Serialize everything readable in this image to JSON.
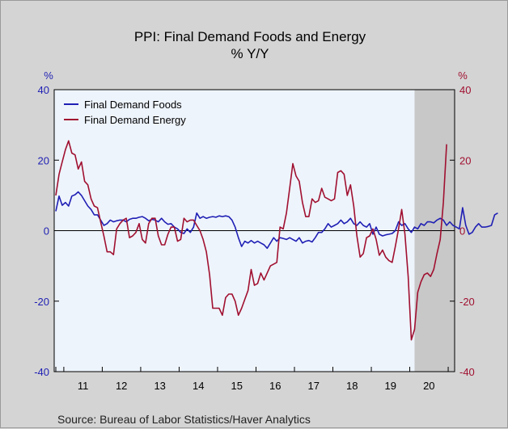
{
  "chart_data": {
    "type": "line",
    "title": "PPI: Final Demand Foods and Energy",
    "subtitle": "% Y/Y",
    "left_unit": "%",
    "right_unit": "%",
    "source": "Source:  Bureau of Labor Statistics/Haver Analytics",
    "ylim": [
      -40,
      40
    ],
    "y_ticks": [
      40,
      20,
      0,
      -20,
      -40
    ],
    "x_ticks": [
      "11",
      "12",
      "13",
      "14",
      "15",
      "16",
      "17",
      "18",
      "19",
      "20"
    ],
    "x_start": "2010-10",
    "grid": false,
    "legend_position": "top-left",
    "recession_shading": {
      "start": "2020-02",
      "end": "2021-03"
    },
    "colors": {
      "food": "#1f1fb4",
      "energy": "#a01030",
      "axis_left": "#1f1fb4",
      "axis_right": "#a01030",
      "plot_bg": "#eef4fc",
      "shade": "#c8c8c8"
    },
    "series": [
      {
        "name": "Final Demand Foods",
        "values": [
          5.5,
          9.8,
          7.2,
          8.0,
          7.0,
          9.8,
          10.2,
          11.0,
          10.0,
          8.5,
          7.0,
          6.0,
          4.5,
          4.5,
          3.0,
          1.5,
          2.0,
          3.0,
          2.5,
          2.8,
          3.0,
          3.0,
          2.5,
          3.2,
          3.5,
          3.5,
          3.8,
          4.0,
          3.5,
          2.8,
          3.2,
          3.0,
          2.5,
          3.5,
          2.5,
          1.8,
          2.0,
          1.0,
          0.5,
          -0.5,
          -0.8,
          0.5,
          -0.5,
          1.0,
          5.0,
          3.5,
          4.0,
          3.5,
          3.8,
          4.0,
          3.8,
          4.2,
          4.0,
          4.2,
          4.0,
          3.0,
          1.0,
          -2.0,
          -4.5,
          -3.0,
          -3.5,
          -2.8,
          -3.5,
          -3.0,
          -3.5,
          -4.0,
          -5.0,
          -3.5,
          -2.0,
          -3.0,
          -2.0,
          -2.2,
          -2.5,
          -2.0,
          -2.5,
          -3.0,
          -2.0,
          -3.5,
          -3.0,
          -2.8,
          -3.2,
          -2.0,
          -0.5,
          -0.5,
          0.5,
          2.0,
          1.0,
          1.5,
          2.0,
          3.0,
          2.0,
          2.5,
          3.5,
          2.0,
          1.5,
          2.5,
          1.5,
          1.0,
          2.0,
          -1.0,
          1.0,
          -1.0,
          -1.5,
          -1.2,
          -1.0,
          -0.8,
          0.0,
          2.5,
          1.5,
          2.0,
          0.5,
          -0.5,
          1.0,
          0.5,
          2.0,
          1.5,
          2.5,
          2.5,
          2.2,
          3.0,
          3.5,
          3.0,
          1.5,
          2.5,
          1.5,
          1.0,
          0.5,
          6.5,
          1.5,
          -1.0,
          -0.5,
          1.0,
          2.0,
          1.0,
          1.0,
          1.2,
          1.5,
          4.5,
          5.0
        ]
      },
      {
        "name": "Final Demand Energy",
        "values": [
          10.0,
          16.0,
          19.5,
          23.0,
          25.5,
          22.0,
          21.5,
          17.5,
          19.5,
          14.0,
          13.0,
          9.0,
          7.0,
          6.5,
          2.5,
          -1.5,
          -6.0,
          -6.0,
          -6.8,
          0.5,
          2.0,
          3.0,
          3.5,
          -2.0,
          -1.5,
          -0.5,
          2.0,
          -2.5,
          -3.5,
          2.0,
          3.5,
          3.5,
          -1.5,
          -4.0,
          -4.0,
          -1.0,
          1.0,
          1.0,
          -3.0,
          -2.5,
          3.5,
          2.5,
          3.0,
          3.0,
          1.5,
          0.0,
          -2.5,
          -6.0,
          -12.5,
          -22.0,
          -22.0,
          -22.0,
          -24.0,
          -19.0,
          -18.0,
          -18.0,
          -20.0,
          -24.0,
          -22.0,
          -19.5,
          -17.0,
          -11.0,
          -15.5,
          -15.0,
          -12.0,
          -14.0,
          -12.0,
          -10.0,
          -9.5,
          -9.0,
          1.0,
          0.5,
          5.0,
          12.0,
          19.0,
          15.5,
          14.0,
          8.0,
          4.0,
          4.0,
          9.0,
          8.0,
          8.5,
          12.0,
          9.5,
          9.0,
          8.5,
          9.0,
          16.5,
          17.0,
          16.0,
          10.0,
          13.0,
          7.0,
          -1.5,
          -7.5,
          -6.5,
          -2.0,
          -1.5,
          0.5,
          -2.5,
          -7.0,
          -5.5,
          -7.5,
          -8.5,
          -9.0,
          -4.5,
          0.5,
          6.0,
          -1.0,
          -13.0,
          -31.0,
          -28.0,
          -17.5,
          -14.5,
          -12.5,
          -12.0,
          -13.0,
          -11.0,
          -6.5,
          -2.5,
          8.0,
          24.5
        ]
      }
    ]
  }
}
